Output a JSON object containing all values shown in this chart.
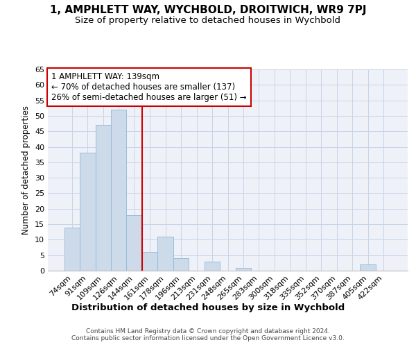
{
  "title": "1, AMPHLETT WAY, WYCHBOLD, DROITWICH, WR9 7PJ",
  "subtitle": "Size of property relative to detached houses in Wychbold",
  "xlabel": "Distribution of detached houses by size in Wychbold",
  "ylabel": "Number of detached properties",
  "categories": [
    "74sqm",
    "91sqm",
    "109sqm",
    "126sqm",
    "144sqm",
    "161sqm",
    "178sqm",
    "196sqm",
    "213sqm",
    "231sqm",
    "248sqm",
    "265sqm",
    "283sqm",
    "300sqm",
    "318sqm",
    "335sqm",
    "352sqm",
    "370sqm",
    "387sqm",
    "405sqm",
    "422sqm"
  ],
  "values": [
    14,
    38,
    47,
    52,
    18,
    6,
    11,
    4,
    0,
    3,
    0,
    1,
    0,
    0,
    0,
    0,
    0,
    0,
    0,
    2,
    0
  ],
  "bar_color": "#cddaea",
  "bar_edge_color": "#8fb8d8",
  "ylim": [
    0,
    65
  ],
  "yticks": [
    0,
    5,
    10,
    15,
    20,
    25,
    30,
    35,
    40,
    45,
    50,
    55,
    60,
    65
  ],
  "annotation_text": "1 AMPHLETT WAY: 139sqm\n← 70% of detached houses are smaller (137)\n26% of semi-detached houses are larger (51) →",
  "annotation_box_color": "#ffffff",
  "annotation_box_edge": "#cc0000",
  "property_line_index": 4,
  "property_line_color": "#cc0000",
  "grid_color": "#c8d4e8",
  "background_color": "#eef2f8",
  "footer_line1": "Contains HM Land Registry data © Crown copyright and database right 2024.",
  "footer_line2": "Contains public sector information licensed under the Open Government Licence v3.0.",
  "title_fontsize": 11,
  "subtitle_fontsize": 9.5,
  "xlabel_fontsize": 9.5,
  "ylabel_fontsize": 8.5,
  "tick_fontsize": 8,
  "footer_fontsize": 6.5,
  "annotation_fontsize": 8.5
}
